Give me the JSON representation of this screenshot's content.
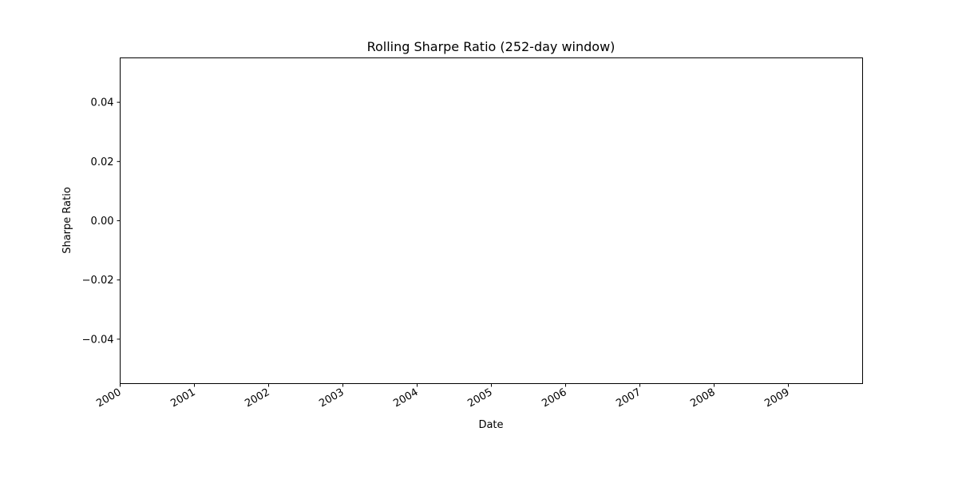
{
  "chart_data": {
    "type": "line",
    "title": "Rolling Sharpe Ratio (252-day window)",
    "xlabel": "Date",
    "ylabel": "Sharpe Ratio",
    "x_ticks": [
      "2000",
      "2001",
      "2002",
      "2003",
      "2004",
      "2005",
      "2006",
      "2007",
      "2008",
      "2009"
    ],
    "y_ticks": [
      0.04,
      0.02,
      0.0,
      -0.02,
      -0.04
    ],
    "y_tick_labels": [
      "0.04",
      "0.02",
      "0.00",
      "−0.02",
      "−0.04"
    ],
    "ylim": [
      -0.055,
      0.055
    ],
    "xlim": [
      "2000",
      "2010"
    ],
    "series": [],
    "grid": false,
    "legend": "none"
  }
}
